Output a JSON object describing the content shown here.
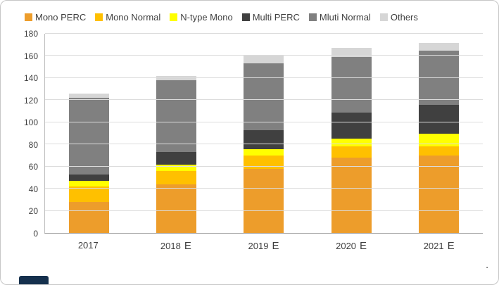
{
  "chart_data": {
    "type": "bar",
    "stacked": true,
    "title": "",
    "xlabel": "",
    "ylabel": "",
    "categories": [
      "2017",
      "2018 E",
      "2019 E",
      "2020 E",
      "2021 E"
    ],
    "series": [
      {
        "name": "Mono PERC",
        "color": "#ED9D2B",
        "values": [
          28,
          44,
          58,
          68,
          70
        ]
      },
      {
        "name": "Mono Normal",
        "color": "#FFC000",
        "values": [
          14,
          12,
          12,
          10,
          8
        ]
      },
      {
        "name": "N-type Mono",
        "color": "#FFFF00",
        "values": [
          5,
          6,
          6,
          7,
          12
        ]
      },
      {
        "name": "Multi PERC",
        "color": "#404040",
        "values": [
          6,
          11,
          17,
          24,
          26
        ]
      },
      {
        "name": "Mluti Normal",
        "color": "#808080",
        "values": [
          69,
          65,
          60,
          50,
          49
        ]
      },
      {
        "name": "Others",
        "color": "#D6D6D6",
        "values": [
          4,
          4,
          7,
          8,
          7
        ]
      }
    ],
    "ylim": [
      0,
      180
    ],
    "ytick_step": 20,
    "yticks": [
      0,
      20,
      40,
      60,
      80,
      100,
      120,
      140,
      160,
      180
    ],
    "grid": true,
    "legend_position": "top"
  },
  "footer": {
    "stray_text": "."
  }
}
